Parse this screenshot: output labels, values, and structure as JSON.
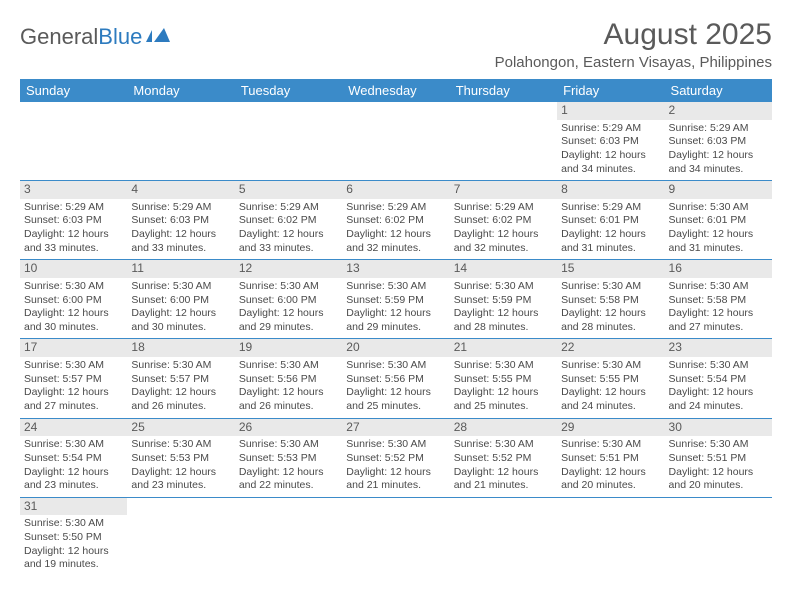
{
  "logo": {
    "text1": "General",
    "text2": "Blue"
  },
  "title": "August 2025",
  "location": "Polahongon, Eastern Visayas, Philippines",
  "header_bg": "#3b8bc9",
  "day_headers": [
    "Sunday",
    "Monday",
    "Tuesday",
    "Wednesday",
    "Thursday",
    "Friday",
    "Saturday"
  ],
  "weeks": [
    [
      null,
      null,
      null,
      null,
      null,
      {
        "n": "1",
        "sr": "5:29 AM",
        "ss": "6:03 PM",
        "dl": "12 hours and 34 minutes."
      },
      {
        "n": "2",
        "sr": "5:29 AM",
        "ss": "6:03 PM",
        "dl": "12 hours and 34 minutes."
      }
    ],
    [
      {
        "n": "3",
        "sr": "5:29 AM",
        "ss": "6:03 PM",
        "dl": "12 hours and 33 minutes."
      },
      {
        "n": "4",
        "sr": "5:29 AM",
        "ss": "6:03 PM",
        "dl": "12 hours and 33 minutes."
      },
      {
        "n": "5",
        "sr": "5:29 AM",
        "ss": "6:02 PM",
        "dl": "12 hours and 33 minutes."
      },
      {
        "n": "6",
        "sr": "5:29 AM",
        "ss": "6:02 PM",
        "dl": "12 hours and 32 minutes."
      },
      {
        "n": "7",
        "sr": "5:29 AM",
        "ss": "6:02 PM",
        "dl": "12 hours and 32 minutes."
      },
      {
        "n": "8",
        "sr": "5:29 AM",
        "ss": "6:01 PM",
        "dl": "12 hours and 31 minutes."
      },
      {
        "n": "9",
        "sr": "5:30 AM",
        "ss": "6:01 PM",
        "dl": "12 hours and 31 minutes."
      }
    ],
    [
      {
        "n": "10",
        "sr": "5:30 AM",
        "ss": "6:00 PM",
        "dl": "12 hours and 30 minutes."
      },
      {
        "n": "11",
        "sr": "5:30 AM",
        "ss": "6:00 PM",
        "dl": "12 hours and 30 minutes."
      },
      {
        "n": "12",
        "sr": "5:30 AM",
        "ss": "6:00 PM",
        "dl": "12 hours and 29 minutes."
      },
      {
        "n": "13",
        "sr": "5:30 AM",
        "ss": "5:59 PM",
        "dl": "12 hours and 29 minutes."
      },
      {
        "n": "14",
        "sr": "5:30 AM",
        "ss": "5:59 PM",
        "dl": "12 hours and 28 minutes."
      },
      {
        "n": "15",
        "sr": "5:30 AM",
        "ss": "5:58 PM",
        "dl": "12 hours and 28 minutes."
      },
      {
        "n": "16",
        "sr": "5:30 AM",
        "ss": "5:58 PM",
        "dl": "12 hours and 27 minutes."
      }
    ],
    [
      {
        "n": "17",
        "sr": "5:30 AM",
        "ss": "5:57 PM",
        "dl": "12 hours and 27 minutes."
      },
      {
        "n": "18",
        "sr": "5:30 AM",
        "ss": "5:57 PM",
        "dl": "12 hours and 26 minutes."
      },
      {
        "n": "19",
        "sr": "5:30 AM",
        "ss": "5:56 PM",
        "dl": "12 hours and 26 minutes."
      },
      {
        "n": "20",
        "sr": "5:30 AM",
        "ss": "5:56 PM",
        "dl": "12 hours and 25 minutes."
      },
      {
        "n": "21",
        "sr": "5:30 AM",
        "ss": "5:55 PM",
        "dl": "12 hours and 25 minutes."
      },
      {
        "n": "22",
        "sr": "5:30 AM",
        "ss": "5:55 PM",
        "dl": "12 hours and 24 minutes."
      },
      {
        "n": "23",
        "sr": "5:30 AM",
        "ss": "5:54 PM",
        "dl": "12 hours and 24 minutes."
      }
    ],
    [
      {
        "n": "24",
        "sr": "5:30 AM",
        "ss": "5:54 PM",
        "dl": "12 hours and 23 minutes."
      },
      {
        "n": "25",
        "sr": "5:30 AM",
        "ss": "5:53 PM",
        "dl": "12 hours and 23 minutes."
      },
      {
        "n": "26",
        "sr": "5:30 AM",
        "ss": "5:53 PM",
        "dl": "12 hours and 22 minutes."
      },
      {
        "n": "27",
        "sr": "5:30 AM",
        "ss": "5:52 PM",
        "dl": "12 hours and 21 minutes."
      },
      {
        "n": "28",
        "sr": "5:30 AM",
        "ss": "5:52 PM",
        "dl": "12 hours and 21 minutes."
      },
      {
        "n": "29",
        "sr": "5:30 AM",
        "ss": "5:51 PM",
        "dl": "12 hours and 20 minutes."
      },
      {
        "n": "30",
        "sr": "5:30 AM",
        "ss": "5:51 PM",
        "dl": "12 hours and 20 minutes."
      }
    ],
    [
      {
        "n": "31",
        "sr": "5:30 AM",
        "ss": "5:50 PM",
        "dl": "12 hours and 19 minutes."
      },
      null,
      null,
      null,
      null,
      null,
      null
    ]
  ],
  "labels": {
    "sunrise": "Sunrise: ",
    "sunset": "Sunset: ",
    "daylight": "Daylight: "
  }
}
